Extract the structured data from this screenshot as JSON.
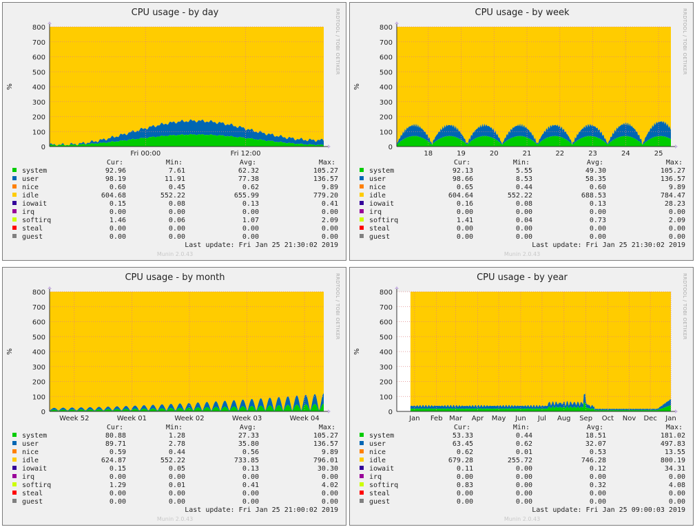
{
  "chart_data": [
    {
      "type": "area",
      "title": "CPU usage - by day",
      "ylabel": "%",
      "ylim": [
        0,
        800
      ],
      "yticks": [
        0,
        100,
        200,
        300,
        400,
        500,
        600,
        700,
        800
      ],
      "xticks": [
        {
          "label": "Fri 00:00",
          "at": 0.35
        },
        {
          "label": "Fri 12:00",
          "at": 0.715
        }
      ],
      "pattern": "day",
      "stack_order": [
        "system",
        "user",
        "idle"
      ],
      "colors": {
        "system": "#00cc00",
        "user": "#0066b3",
        "nice": "#ff8000",
        "idle": "#ffcc00",
        "iowait": "#330099",
        "irq": "#990099",
        "softirq": "#ccff00",
        "steal": "#ff0000",
        "guest": "#808080"
      },
      "stats_headers": [
        "Cur:",
        "Min:",
        "Avg:",
        "Max:"
      ],
      "legend": [
        {
          "name": "system",
          "cur": "92.96",
          "min": "7.61",
          "avg": "62.32",
          "max": "105.27"
        },
        {
          "name": "user",
          "cur": "98.19",
          "min": "11.91",
          "avg": "77.38",
          "max": "136.57"
        },
        {
          "name": "nice",
          "cur": "0.60",
          "min": "0.45",
          "avg": "0.62",
          "max": "9.89"
        },
        {
          "name": "idle",
          "cur": "604.68",
          "min": "552.22",
          "avg": "655.99",
          "max": "779.20"
        },
        {
          "name": "iowait",
          "cur": "0.15",
          "min": "0.08",
          "avg": "0.13",
          "max": "0.41"
        },
        {
          "name": "irq",
          "cur": "0.00",
          "min": "0.00",
          "avg": "0.00",
          "max": "0.00"
        },
        {
          "name": "softirq",
          "cur": "1.46",
          "min": "0.06",
          "avg": "1.07",
          "max": "2.09"
        },
        {
          "name": "steal",
          "cur": "0.00",
          "min": "0.00",
          "avg": "0.00",
          "max": "0.00"
        },
        {
          "name": "guest",
          "cur": "0.00",
          "min": "0.00",
          "avg": "0.00",
          "max": "0.00"
        }
      ],
      "last_update": "Last update: Fri Jan 25 21:30:02 2019",
      "footer": "Munin 2.0.43",
      "side_label": "RRDTOOL / TOBI OETIKER"
    },
    {
      "type": "area",
      "title": "CPU usage - by week",
      "ylabel": "%",
      "ylim": [
        0,
        800
      ],
      "yticks": [
        0,
        100,
        200,
        300,
        400,
        500,
        600,
        700,
        800
      ],
      "xticks": [
        {
          "label": "18",
          "at": 0.115
        },
        {
          "label": "19",
          "at": 0.235
        },
        {
          "label": "20",
          "at": 0.355
        },
        {
          "label": "21",
          "at": 0.475
        },
        {
          "label": "22",
          "at": 0.595
        },
        {
          "label": "23",
          "at": 0.715
        },
        {
          "label": "24",
          "at": 0.835
        },
        {
          "label": "25",
          "at": 0.955
        }
      ],
      "pattern": "week",
      "stack_order": [
        "system",
        "user",
        "idle"
      ],
      "colors": {
        "system": "#00cc00",
        "user": "#0066b3",
        "nice": "#ff8000",
        "idle": "#ffcc00",
        "iowait": "#330099",
        "irq": "#990099",
        "softirq": "#ccff00",
        "steal": "#ff0000",
        "guest": "#808080"
      },
      "stats_headers": [
        "Cur:",
        "Min:",
        "Avg:",
        "Max:"
      ],
      "legend": [
        {
          "name": "system",
          "cur": "92.13",
          "min": "5.55",
          "avg": "49.30",
          "max": "105.27"
        },
        {
          "name": "user",
          "cur": "98.66",
          "min": "8.53",
          "avg": "58.35",
          "max": "136.57"
        },
        {
          "name": "nice",
          "cur": "0.65",
          "min": "0.44",
          "avg": "0.60",
          "max": "9.89"
        },
        {
          "name": "idle",
          "cur": "604.64",
          "min": "552.22",
          "avg": "688.53",
          "max": "784.47"
        },
        {
          "name": "iowait",
          "cur": "0.16",
          "min": "0.08",
          "avg": "0.13",
          "max": "28.23"
        },
        {
          "name": "irq",
          "cur": "0.00",
          "min": "0.00",
          "avg": "0.00",
          "max": "0.00"
        },
        {
          "name": "softirq",
          "cur": "1.41",
          "min": "0.04",
          "avg": "0.73",
          "max": "2.09"
        },
        {
          "name": "steal",
          "cur": "0.00",
          "min": "0.00",
          "avg": "0.00",
          "max": "0.00"
        },
        {
          "name": "guest",
          "cur": "0.00",
          "min": "0.00",
          "avg": "0.00",
          "max": "0.00"
        }
      ],
      "last_update": "Last update: Fri Jan 25 21:30:02 2019",
      "footer": "Munin 2.0.43",
      "side_label": "RRDTOOL / TOBI OETIKER"
    },
    {
      "type": "area",
      "title": "CPU usage - by month",
      "ylabel": "%",
      "ylim": [
        0,
        800
      ],
      "yticks": [
        0,
        100,
        200,
        300,
        400,
        500,
        600,
        700,
        800
      ],
      "xticks": [
        {
          "label": "Week 52",
          "at": 0.09
        },
        {
          "label": "Week 01",
          "at": 0.3
        },
        {
          "label": "Week 02",
          "at": 0.51
        },
        {
          "label": "Week 03",
          "at": 0.72
        },
        {
          "label": "Week 04",
          "at": 0.93
        }
      ],
      "pattern": "month",
      "stack_order": [
        "system",
        "user",
        "idle"
      ],
      "colors": {
        "system": "#00cc00",
        "user": "#0066b3",
        "nice": "#ff8000",
        "idle": "#ffcc00",
        "iowait": "#330099",
        "irq": "#990099",
        "softirq": "#ccff00",
        "steal": "#ff0000",
        "guest": "#808080"
      },
      "stats_headers": [
        "Cur:",
        "Min:",
        "Avg:",
        "Max:"
      ],
      "legend": [
        {
          "name": "system",
          "cur": "80.88",
          "min": "1.28",
          "avg": "27.33",
          "max": "105.27"
        },
        {
          "name": "user",
          "cur": "89.71",
          "min": "2.78",
          "avg": "35.80",
          "max": "136.57"
        },
        {
          "name": "nice",
          "cur": "0.59",
          "min": "0.44",
          "avg": "0.56",
          "max": "9.89"
        },
        {
          "name": "idle",
          "cur": "624.87",
          "min": "552.22",
          "avg": "733.85",
          "max": "796.01"
        },
        {
          "name": "iowait",
          "cur": "0.15",
          "min": "0.05",
          "avg": "0.13",
          "max": "30.30"
        },
        {
          "name": "irq",
          "cur": "0.00",
          "min": "0.00",
          "avg": "0.00",
          "max": "0.00"
        },
        {
          "name": "softirq",
          "cur": "1.29",
          "min": "0.01",
          "avg": "0.41",
          "max": "4.02"
        },
        {
          "name": "steal",
          "cur": "0.00",
          "min": "0.00",
          "avg": "0.00",
          "max": "0.00"
        },
        {
          "name": "guest",
          "cur": "0.00",
          "min": "0.00",
          "avg": "0.00",
          "max": "0.00"
        }
      ],
      "last_update": "Last update: Fri Jan 25 21:00:02 2019",
      "footer": "Munin 2.0.43",
      "side_label": "RRDTOOL / TOBI OETIKER"
    },
    {
      "type": "area",
      "title": "CPU usage - by year",
      "ylabel": "%",
      "ylim": [
        0,
        800
      ],
      "yticks": [
        0,
        100,
        200,
        300,
        400,
        500,
        600,
        700,
        800
      ],
      "xticks": [
        {
          "label": "Jan",
          "at": 0.065
        },
        {
          "label": "Feb",
          "at": 0.145
        },
        {
          "label": "Mar",
          "at": 0.215
        },
        {
          "label": "Apr",
          "at": 0.295
        },
        {
          "label": "May",
          "at": 0.372
        },
        {
          "label": "Jun",
          "at": 0.452
        },
        {
          "label": "Jul",
          "at": 0.53
        },
        {
          "label": "Aug",
          "at": 0.61
        },
        {
          "label": "Sep",
          "at": 0.69
        },
        {
          "label": "Oct",
          "at": 0.77
        },
        {
          "label": "Nov",
          "at": 0.848
        },
        {
          "label": "Dec",
          "at": 0.925
        },
        {
          "label": "Jan",
          "at": 1.0
        }
      ],
      "pattern": "year",
      "data_start": 0.05,
      "stack_order": [
        "system",
        "user",
        "idle"
      ],
      "colors": {
        "system": "#00cc00",
        "user": "#0066b3",
        "nice": "#ff8000",
        "idle": "#ffcc00",
        "iowait": "#330099",
        "irq": "#990099",
        "softirq": "#ccff00",
        "steal": "#ff0000",
        "guest": "#808080"
      },
      "stats_headers": [
        "Cur:",
        "Min:",
        "Avg:",
        "Max:"
      ],
      "legend": [
        {
          "name": "system",
          "cur": "53.33",
          "min": "0.44",
          "avg": "18.51",
          "max": "181.02"
        },
        {
          "name": "user",
          "cur": "63.45",
          "min": "0.62",
          "avg": "32.07",
          "max": "497.83"
        },
        {
          "name": "nice",
          "cur": "0.62",
          "min": "0.01",
          "avg": "0.53",
          "max": "13.55"
        },
        {
          "name": "idle",
          "cur": "679.28",
          "min": "255.72",
          "avg": "746.28",
          "max": "800.19"
        },
        {
          "name": "iowait",
          "cur": "0.11",
          "min": "0.00",
          "avg": "0.12",
          "max": "34.31"
        },
        {
          "name": "irq",
          "cur": "0.00",
          "min": "0.00",
          "avg": "0.00",
          "max": "0.00"
        },
        {
          "name": "softirq",
          "cur": "0.83",
          "min": "0.00",
          "avg": "0.32",
          "max": "4.08"
        },
        {
          "name": "steal",
          "cur": "0.00",
          "min": "0.00",
          "avg": "0.00",
          "max": "0.00"
        },
        {
          "name": "guest",
          "cur": "0.00",
          "min": "0.00",
          "avg": "0.00",
          "max": "0.00"
        }
      ],
      "last_update": "Last update: Fri Jan 25 09:00:03 2019",
      "footer": "Munin 2.0.43",
      "side_label": "RRDTOOL / TOBI OETIKER"
    }
  ]
}
